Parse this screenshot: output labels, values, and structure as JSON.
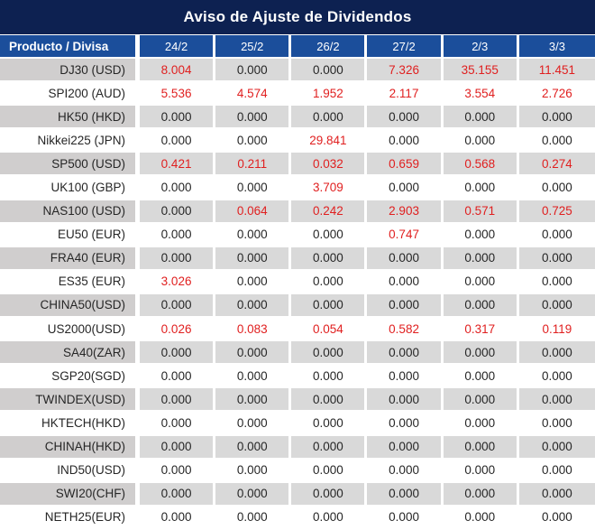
{
  "chart_data": {
    "type": "table",
    "title": "Aviso de Ajuste de Dividendos",
    "columns": [
      "Producto / Divisa",
      "24/2",
      "25/2",
      "26/2",
      "27/2",
      "2/3",
      "3/3"
    ],
    "rows": [
      {
        "product": "DJ30 (USD)",
        "values": [
          "8.004",
          "0.000",
          "0.000",
          "7.326",
          "35.155",
          "11.451"
        ]
      },
      {
        "product": "SPI200 (AUD)",
        "values": [
          "5.536",
          "4.574",
          "1.952",
          "2.117",
          "3.554",
          "2.726"
        ]
      },
      {
        "product": "HK50 (HKD)",
        "values": [
          "0.000",
          "0.000",
          "0.000",
          "0.000",
          "0.000",
          "0.000"
        ]
      },
      {
        "product": "Nikkei225 (JPN)",
        "values": [
          "0.000",
          "0.000",
          "29.841",
          "0.000",
          "0.000",
          "0.000"
        ]
      },
      {
        "product": "SP500 (USD)",
        "values": [
          "0.421",
          "0.211",
          "0.032",
          "0.659",
          "0.568",
          "0.274"
        ]
      },
      {
        "product": "UK100 (GBP)",
        "values": [
          "0.000",
          "0.000",
          "3.709",
          "0.000",
          "0.000",
          "0.000"
        ]
      },
      {
        "product": "NAS100 (USD)",
        "values": [
          "0.000",
          "0.064",
          "0.242",
          "2.903",
          "0.571",
          "0.725"
        ]
      },
      {
        "product": "EU50 (EUR)",
        "values": [
          "0.000",
          "0.000",
          "0.000",
          "0.747",
          "0.000",
          "0.000"
        ]
      },
      {
        "product": "FRA40 (EUR)",
        "values": [
          "0.000",
          "0.000",
          "0.000",
          "0.000",
          "0.000",
          "0.000"
        ]
      },
      {
        "product": "ES35 (EUR)",
        "values": [
          "3.026",
          "0.000",
          "0.000",
          "0.000",
          "0.000",
          "0.000"
        ]
      },
      {
        "product": "CHINA50(USD)",
        "values": [
          "0.000",
          "0.000",
          "0.000",
          "0.000",
          "0.000",
          "0.000"
        ]
      },
      {
        "product": "US2000(USD)",
        "values": [
          "0.026",
          "0.083",
          "0.054",
          "0.582",
          "0.317",
          "0.119"
        ]
      },
      {
        "product": "SA40(ZAR)",
        "values": [
          "0.000",
          "0.000",
          "0.000",
          "0.000",
          "0.000",
          "0.000"
        ]
      },
      {
        "product": "SGP20(SGD)",
        "values": [
          "0.000",
          "0.000",
          "0.000",
          "0.000",
          "0.000",
          "0.000"
        ]
      },
      {
        "product": "TWINDEX(USD)",
        "values": [
          "0.000",
          "0.000",
          "0.000",
          "0.000",
          "0.000",
          "0.000"
        ]
      },
      {
        "product": "HKTECH(HKD)",
        "values": [
          "0.000",
          "0.000",
          "0.000",
          "0.000",
          "0.000",
          "0.000"
        ]
      },
      {
        "product": "CHINAH(HKD)",
        "values": [
          "0.000",
          "0.000",
          "0.000",
          "0.000",
          "0.000",
          "0.000"
        ]
      },
      {
        "product": "IND50(USD)",
        "values": [
          "0.000",
          "0.000",
          "0.000",
          "0.000",
          "0.000",
          "0.000"
        ]
      },
      {
        "product": "SWI20(CHF)",
        "values": [
          "0.000",
          "0.000",
          "0.000",
          "0.000",
          "0.000",
          "0.000"
        ]
      },
      {
        "product": "NETH25(EUR)",
        "values": [
          "0.000",
          "0.000",
          "0.000",
          "0.000",
          "0.000",
          "0.000"
        ]
      }
    ],
    "zero_value": "0.000",
    "layout": {
      "alternating_rows": true,
      "first_row_shaded": true,
      "values_nonzero_highlighted": true
    }
  },
  "colors": {
    "title_bg": "#0d2151",
    "header_bg": "#1b4e9b",
    "row_alt_bg": "#d9d9d9",
    "row_label_alt_bg": "#d0cece",
    "value_red": "#e01f1f",
    "value_zero": "#262626"
  }
}
